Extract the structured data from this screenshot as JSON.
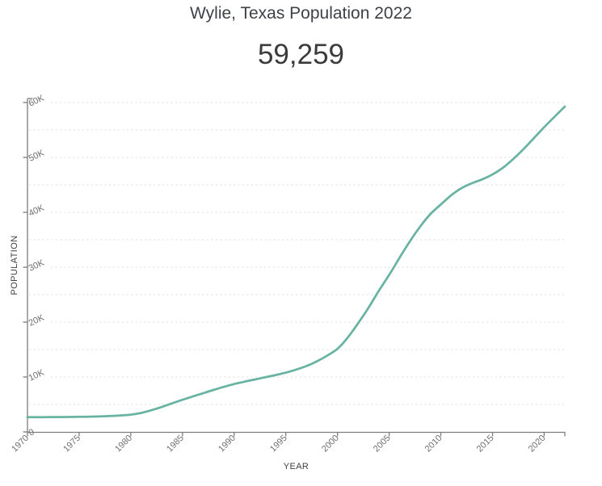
{
  "header": {
    "title": "Wylie, Texas Population 2022",
    "population_value": "59,259"
  },
  "colors": {
    "line": "#69b3a2",
    "grid": "#dddddd",
    "axis": "#7d7d7d",
    "tick_text": "#6f6f6f",
    "axis_label_text": "#3f3f3f",
    "title_text": "#3e4147",
    "number_text": "#3b3b3b",
    "background": "#ffffff"
  },
  "chart_data": {
    "type": "line",
    "title": "Wylie, Texas Population 2022",
    "current_value": 59259,
    "xlabel": "YEAR",
    "ylabel": "POPULATION",
    "xlim": [
      1970,
      2022
    ],
    "ylim": [
      0,
      60000
    ],
    "x_ticks": [
      1970,
      1975,
      1980,
      1985,
      1990,
      1995,
      2000,
      2005,
      2010,
      2015,
      2020
    ],
    "y_ticks": [
      {
        "value": 0,
        "label": "0"
      },
      {
        "value": 10000,
        "label": "10K"
      },
      {
        "value": 20000,
        "label": "20K"
      },
      {
        "value": 30000,
        "label": "30K"
      },
      {
        "value": 40000,
        "label": "40K"
      },
      {
        "value": 50000,
        "label": "50K"
      },
      {
        "value": 60000,
        "label": "60K"
      }
    ],
    "grid": {
      "y_step": 5000,
      "style": "dotted",
      "vertical": false
    },
    "legend": {
      "visible": false
    },
    "line_color": "#69b3a2",
    "series": [
      {
        "name": "Population",
        "points": [
          [
            1970,
            2675
          ],
          [
            1971,
            2690
          ],
          [
            1972,
            2700
          ],
          [
            1973,
            2710
          ],
          [
            1974,
            2725
          ],
          [
            1975,
            2745
          ],
          [
            1976,
            2775
          ],
          [
            1977,
            2820
          ],
          [
            1978,
            2890
          ],
          [
            1979,
            3000
          ],
          [
            1980,
            3152
          ],
          [
            1981,
            3450
          ],
          [
            1982,
            3950
          ],
          [
            1983,
            4550
          ],
          [
            1984,
            5200
          ],
          [
            1985,
            5850
          ],
          [
            1986,
            6450
          ],
          [
            1987,
            7050
          ],
          [
            1988,
            7650
          ],
          [
            1989,
            8200
          ],
          [
            1990,
            8716
          ],
          [
            1991,
            9150
          ],
          [
            1992,
            9550
          ],
          [
            1993,
            9950
          ],
          [
            1994,
            10350
          ],
          [
            1995,
            10800
          ],
          [
            1996,
            11350
          ],
          [
            1997,
            12000
          ],
          [
            1998,
            12850
          ],
          [
            1999,
            13900
          ],
          [
            2000,
            15132
          ],
          [
            2001,
            17200
          ],
          [
            2002,
            19800
          ],
          [
            2003,
            22600
          ],
          [
            2004,
            25700
          ],
          [
            2005,
            28600
          ],
          [
            2006,
            31700
          ],
          [
            2007,
            34700
          ],
          [
            2008,
            37400
          ],
          [
            2009,
            39700
          ],
          [
            2010,
            41427
          ],
          [
            2011,
            43100
          ],
          [
            2012,
            44400
          ],
          [
            2013,
            45300
          ],
          [
            2014,
            46000
          ],
          [
            2015,
            46900
          ],
          [
            2016,
            48100
          ],
          [
            2017,
            49700
          ],
          [
            2018,
            51500
          ],
          [
            2019,
            53500
          ],
          [
            2020,
            55500
          ],
          [
            2021,
            57400
          ],
          [
            2022,
            59259
          ]
        ]
      }
    ]
  }
}
